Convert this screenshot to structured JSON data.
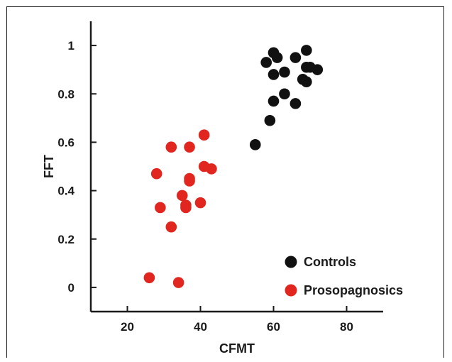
{
  "chart_data": {
    "type": "scatter",
    "xlabel": "CFMT",
    "ylabel": "FFT",
    "xlim": [
      10,
      90
    ],
    "ylim": [
      -0.1,
      1.1
    ],
    "x_ticks": [
      20,
      40,
      60,
      80
    ],
    "y_ticks": [
      0,
      0.2,
      0.4,
      0.6,
      0.8,
      1
    ],
    "x_tick_labels": [
      "20",
      "40",
      "60",
      "80"
    ],
    "y_tick_labels": [
      "0",
      "0.2",
      "0.4",
      "0.6",
      "0.8",
      "1"
    ],
    "grid": false,
    "legend_position": "bottom-right",
    "series": [
      {
        "name": "Controls",
        "color": "#111111",
        "points": [
          {
            "x": 55,
            "y": 0.59
          },
          {
            "x": 59,
            "y": 0.69
          },
          {
            "x": 58,
            "y": 0.93
          },
          {
            "x": 60,
            "y": 0.97
          },
          {
            "x": 61,
            "y": 0.95
          },
          {
            "x": 60,
            "y": 0.88
          },
          {
            "x": 63,
            "y": 0.89
          },
          {
            "x": 60,
            "y": 0.77
          },
          {
            "x": 63,
            "y": 0.8
          },
          {
            "x": 66,
            "y": 0.95
          },
          {
            "x": 69,
            "y": 0.98
          },
          {
            "x": 69,
            "y": 0.91
          },
          {
            "x": 70,
            "y": 0.91
          },
          {
            "x": 72,
            "y": 0.9
          },
          {
            "x": 68,
            "y": 0.86
          },
          {
            "x": 69,
            "y": 0.85
          },
          {
            "x": 66,
            "y": 0.76
          }
        ]
      },
      {
        "name": "Prosopagnosics",
        "color": "#e0261f",
        "points": [
          {
            "x": 41,
            "y": 0.63
          },
          {
            "x": 32,
            "y": 0.58
          },
          {
            "x": 37,
            "y": 0.58
          },
          {
            "x": 28,
            "y": 0.47
          },
          {
            "x": 41,
            "y": 0.5
          },
          {
            "x": 43,
            "y": 0.49
          },
          {
            "x": 37,
            "y": 0.45
          },
          {
            "x": 37,
            "y": 0.44
          },
          {
            "x": 35,
            "y": 0.38
          },
          {
            "x": 29,
            "y": 0.33
          },
          {
            "x": 36,
            "y": 0.34
          },
          {
            "x": 36,
            "y": 0.33
          },
          {
            "x": 40,
            "y": 0.35
          },
          {
            "x": 32,
            "y": 0.25
          },
          {
            "x": 26,
            "y": 0.04
          },
          {
            "x": 34,
            "y": 0.02
          }
        ]
      }
    ]
  }
}
